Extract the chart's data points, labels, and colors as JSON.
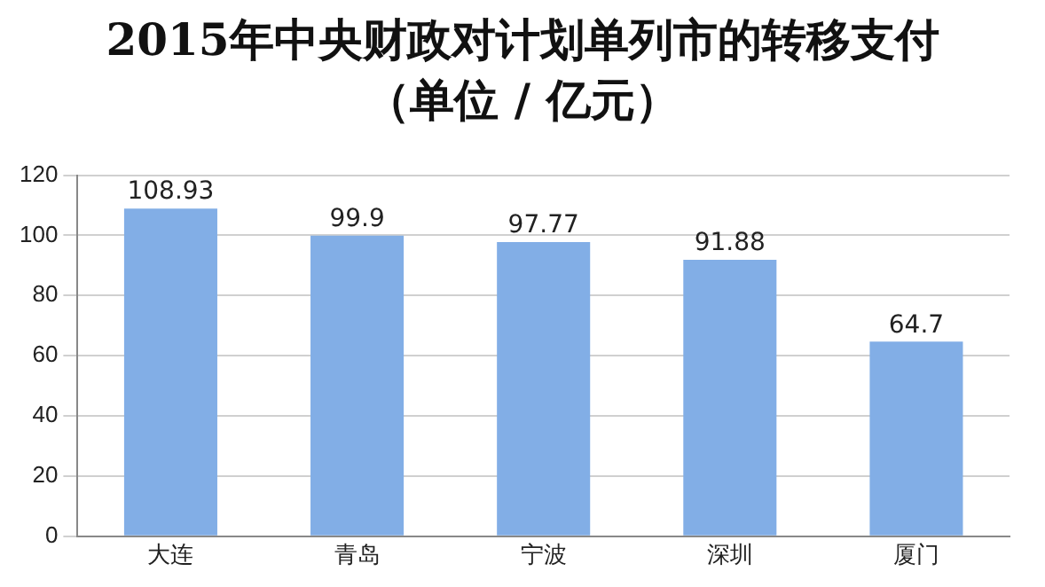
{
  "chart_data": {
    "type": "bar",
    "title": "2015年中央财政对计划单列市的转移支付（单位 / 亿元）",
    "categories": [
      "大连",
      "青岛",
      "宁波",
      "深圳",
      "厦门"
    ],
    "values": [
      108.93,
      99.9,
      97.77,
      91.88,
      64.7
    ],
    "color": "#82aee6",
    "ylim": [
      0,
      120
    ],
    "yticks": [
      0,
      20,
      40,
      60,
      80,
      100,
      120
    ],
    "grid": "y",
    "data_labels": true
  }
}
